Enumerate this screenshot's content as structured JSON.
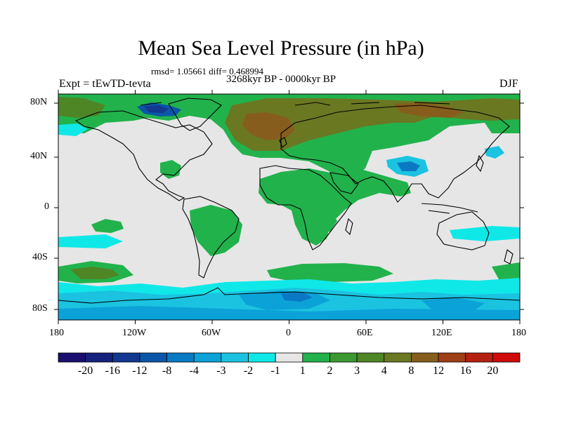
{
  "header": {
    "title": "Mean Sea Level Pressure (in hPa)",
    "stats": "rmsd= 1.05661 diff= 0.468994",
    "period": "3268kyr BP - 0000kyr BP",
    "experiment": "Expt = tEwTD-tevta",
    "season": "DJF"
  },
  "axes": {
    "lat_labels": [
      "80N",
      "40N",
      "0",
      "40S",
      "80S"
    ],
    "lon_labels": [
      "180",
      "120W",
      "60W",
      "0",
      "60E",
      "120E",
      "180"
    ]
  },
  "colorbar": {
    "labels": [
      "-20",
      "-16",
      "-12",
      "-8",
      "-4",
      "-3",
      "-2",
      "-1",
      "1",
      "2",
      "3",
      "4",
      "8",
      "12",
      "16",
      "20"
    ],
    "colors": [
      "#1a0f6e",
      "#16227e",
      "#12388f",
      "#0b56a8",
      "#0a79c4",
      "#0ba2d8",
      "#1bc3e0",
      "#10e8e8",
      "#e6e6e6",
      "#22b24c",
      "#3b9830",
      "#4e8626",
      "#6a7822",
      "#865d1c",
      "#9e3f17",
      "#b52010",
      "#d00a0a"
    ]
  },
  "colors": {
    "land_outline": "#000000",
    "ocean_neutral": "#e6e6e6"
  }
}
